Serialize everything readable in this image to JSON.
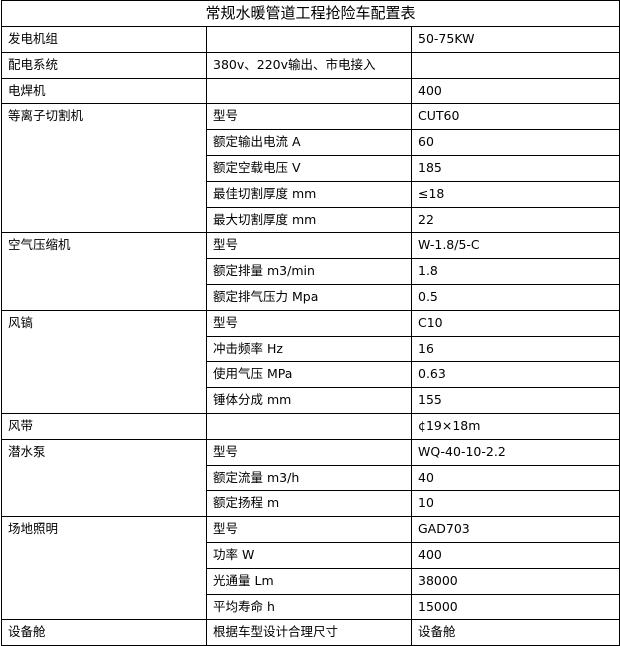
{
  "title": "常规水暖管道工程抢险车配置表",
  "rows": [
    {
      "name": "发电机组",
      "spec": "",
      "value": "50-75KW"
    },
    {
      "name": "配电系统",
      "spec": "380v、220v输出、市电接入",
      "value": ""
    },
    {
      "name": "电焊机",
      "spec": "",
      "value": "400"
    }
  ],
  "groups": [
    {
      "name": "等离子切割机",
      "items": [
        {
          "spec": "型号",
          "value": "CUT60"
        },
        {
          "spec": "额定输出电流 A",
          "value": "60"
        },
        {
          "spec": "额定空载电压 V",
          "value": "185"
        },
        {
          "spec": "最佳切割厚度 mm",
          "value": "≤18"
        },
        {
          "spec": "最大切割厚度 mm",
          "value": "22"
        }
      ]
    },
    {
      "name": "空气压缩机",
      "items": [
        {
          "spec": "型号",
          "value": "W-1.8/5-C"
        },
        {
          "spec": "额定排量 m3/min",
          "value": "1.8"
        },
        {
          "spec": "额定排气压力 Mpa",
          "value": "0.5"
        }
      ]
    },
    {
      "name": "风镐",
      "items": [
        {
          "spec": "型号",
          "value": "C10"
        },
        {
          "spec": "冲击频率 Hz",
          "value": "16"
        },
        {
          "spec": "使用气压 MPa",
          "value": "0.63"
        },
        {
          "spec": "锤体分成 mm",
          "value": "155"
        }
      ]
    },
    {
      "name": "风带",
      "items": [
        {
          "spec": "",
          "value": "¢19×18m"
        }
      ]
    },
    {
      "name": "潜水泵",
      "items": [
        {
          "spec": "型号",
          "value": "WQ-40-10-2.2"
        },
        {
          "spec": "额定流量 m3/h",
          "value": "40"
        },
        {
          "spec": "额定扬程 m",
          "value": "10"
        }
      ]
    },
    {
      "name": "场地照明",
      "items": [
        {
          "spec": "型号",
          "value": "GAD703"
        },
        {
          "spec": "功率 W",
          "value": "400"
        },
        {
          "spec": "光通量 Lm",
          "value": "38000"
        },
        {
          "spec": "平均寿命 h",
          "value": "15000"
        }
      ]
    },
    {
      "name": "设备舱",
      "items": [
        {
          "spec": "根据车型设计合理尺寸",
          "value": "设备舱"
        }
      ]
    }
  ]
}
